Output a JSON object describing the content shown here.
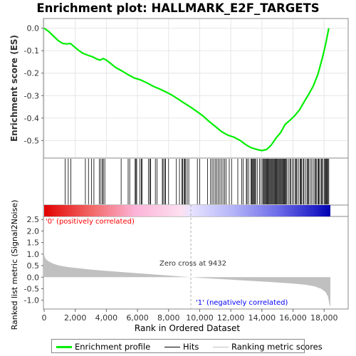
{
  "chart_data": {
    "type": "line",
    "title": "Enrichment plot: HALLMARK_E2F_TARGETS",
    "panels": {
      "enrichment": {
        "ylabel": "Enrichment score (ES)",
        "ylim": [
          -0.575,
          0.04
        ],
        "yticks": [
          0.0,
          -0.1,
          -0.2,
          -0.3,
          -0.4,
          -0.5
        ],
        "ytick_labels": [
          "0.0",
          "-0.1",
          "-0.2",
          "-0.3",
          "-0.4",
          "-0.5"
        ],
        "series_name": "Enrichment profile",
        "color": "#00ee00",
        "points": [
          [
            0,
            0.0
          ],
          [
            300,
            -0.015
          ],
          [
            600,
            -0.035
          ],
          [
            900,
            -0.055
          ],
          [
            1200,
            -0.068
          ],
          [
            1450,
            -0.07
          ],
          [
            1700,
            -0.068
          ],
          [
            1900,
            -0.08
          ],
          [
            2200,
            -0.098
          ],
          [
            2500,
            -0.112
          ],
          [
            2800,
            -0.12
          ],
          [
            3100,
            -0.127
          ],
          [
            3400,
            -0.138
          ],
          [
            3600,
            -0.142
          ],
          [
            3800,
            -0.135
          ],
          [
            4000,
            -0.142
          ],
          [
            4300,
            -0.158
          ],
          [
            4600,
            -0.175
          ],
          [
            5000,
            -0.19
          ],
          [
            5400,
            -0.207
          ],
          [
            5800,
            -0.222
          ],
          [
            6200,
            -0.23
          ],
          [
            6600,
            -0.243
          ],
          [
            7000,
            -0.258
          ],
          [
            7400,
            -0.27
          ],
          [
            7800,
            -0.283
          ],
          [
            8200,
            -0.297
          ],
          [
            8600,
            -0.315
          ],
          [
            9000,
            -0.333
          ],
          [
            9432,
            -0.352
          ],
          [
            9800,
            -0.37
          ],
          [
            10200,
            -0.39
          ],
          [
            10600,
            -0.415
          ],
          [
            11000,
            -0.437
          ],
          [
            11400,
            -0.46
          ],
          [
            11800,
            -0.476
          ],
          [
            12200,
            -0.485
          ],
          [
            12600,
            -0.5
          ],
          [
            13000,
            -0.52
          ],
          [
            13300,
            -0.532
          ],
          [
            13700,
            -0.54
          ],
          [
            14000,
            -0.545
          ],
          [
            14300,
            -0.54
          ],
          [
            14600,
            -0.52
          ],
          [
            14900,
            -0.49
          ],
          [
            15200,
            -0.465
          ],
          [
            15500,
            -0.428
          ],
          [
            15800,
            -0.41
          ],
          [
            16100,
            -0.39
          ],
          [
            16400,
            -0.365
          ],
          [
            16700,
            -0.33
          ],
          [
            17000,
            -0.295
          ],
          [
            17300,
            -0.258
          ],
          [
            17600,
            -0.205
          ],
          [
            17900,
            -0.13
          ],
          [
            18100,
            -0.07
          ],
          [
            18300,
            0.0
          ]
        ]
      },
      "hits": {
        "label": "Hits",
        "positions": [
          1350,
          1550,
          1720,
          2650,
          2850,
          3050,
          3200,
          3550,
          3650,
          3750,
          3800,
          3900,
          4950,
          5400,
          5500,
          5850,
          5900,
          5950,
          6150,
          6250,
          6300,
          6700,
          6800,
          6850,
          7150,
          7250,
          7600,
          7650,
          7750,
          7800,
          8000,
          8500,
          8700,
          8850,
          8900,
          9000,
          9050,
          9100,
          9200,
          9300,
          9850,
          10000,
          10500,
          10700,
          10800,
          10900,
          11000,
          11100,
          11200,
          11300,
          11400,
          11500,
          11600,
          11700,
          11900,
          12050,
          12450,
          12700,
          12800,
          13000,
          13050,
          13150,
          13300,
          13350,
          13400,
          13450,
          13500,
          13550,
          13600,
          13700,
          13850,
          13950,
          14050,
          14100,
          14150,
          14200,
          14250,
          14300,
          14350,
          14400,
          14450,
          14500,
          14550,
          14600,
          14650,
          14700,
          14750,
          14800,
          14850,
          14900,
          14950,
          15000,
          15050,
          15100,
          15150,
          15200,
          15250,
          15300,
          15350,
          15400,
          15450,
          15500,
          15550,
          15600,
          15700,
          15800,
          15850,
          15950,
          16050,
          16150,
          16200,
          16250,
          16350,
          16450,
          16500,
          16550,
          16650,
          16700,
          16800,
          16900,
          16950,
          17000,
          17100,
          17200,
          17300,
          17400,
          17450,
          17500,
          17600,
          17650,
          17700,
          17800,
          17850,
          17900,
          18000,
          18050,
          18100,
          18150,
          18200,
          18250,
          18300
        ]
      },
      "ranked_metric": {
        "ylabel": "Ranked list metric (Signal2Noise)",
        "ylim": [
          -1.35,
          2.6
        ],
        "yticks": [
          2.5,
          2.0,
          1.5,
          1.0,
          0.5,
          0.0,
          -0.5,
          -1.0
        ],
        "ytick_labels": [
          "2.5",
          "2.0",
          "1.5",
          "1.0",
          "0.5",
          "0.0",
          "-0.5",
          "-1.0"
        ],
        "series_name": "Ranking metric scores",
        "points": [
          [
            0,
            1.0
          ],
          [
            50,
            0.85
          ],
          [
            150,
            0.75
          ],
          [
            300,
            0.68
          ],
          [
            600,
            0.58
          ],
          [
            1000,
            0.5
          ],
          [
            1500,
            0.44
          ],
          [
            2000,
            0.4
          ],
          [
            3000,
            0.33
          ],
          [
            4000,
            0.27
          ],
          [
            5000,
            0.22
          ],
          [
            6000,
            0.17
          ],
          [
            7000,
            0.12
          ],
          [
            8000,
            0.07
          ],
          [
            9000,
            0.02
          ],
          [
            9432,
            0.0
          ],
          [
            10000,
            -0.03
          ],
          [
            11000,
            -0.07
          ],
          [
            12000,
            -0.11
          ],
          [
            13000,
            -0.15
          ],
          [
            14000,
            -0.19
          ],
          [
            15000,
            -0.23
          ],
          [
            16000,
            -0.28
          ],
          [
            16800,
            -0.33
          ],
          [
            17400,
            -0.4
          ],
          [
            17800,
            -0.5
          ],
          [
            18100,
            -0.65
          ],
          [
            18250,
            -0.85
          ],
          [
            18350,
            -1.2
          ],
          [
            18400,
            -1.28
          ]
        ],
        "annotations": {
          "zero_cross": "Zero cross at 9432",
          "positive": "'0' (positively correlated)",
          "negative": "'1' (negatively correlated)"
        },
        "zero_cross_rank": 9432
      }
    },
    "xlabel": "Rank in Ordered Dataset",
    "xlim": [
      0,
      19500
    ],
    "xticks": [
      0,
      2000,
      4000,
      6000,
      8000,
      10000,
      12000,
      14000,
      16000,
      18000
    ],
    "xtick_labels": [
      "0",
      "2,000",
      "4,000",
      "6,000",
      "8,000",
      "10,000",
      "12,000",
      "14,000",
      "16,000",
      "18,000"
    ],
    "n_genes": 18400,
    "colors": {
      "positive_text": "#ff0000",
      "negative_text": "#0000ff",
      "metric_fill": "#c0c0c0",
      "hits": "#000000"
    }
  },
  "legend": {
    "enrichment_profile": "Enrichment profile",
    "hits": "Hits",
    "ranking_metric": "Ranking metric scores"
  }
}
